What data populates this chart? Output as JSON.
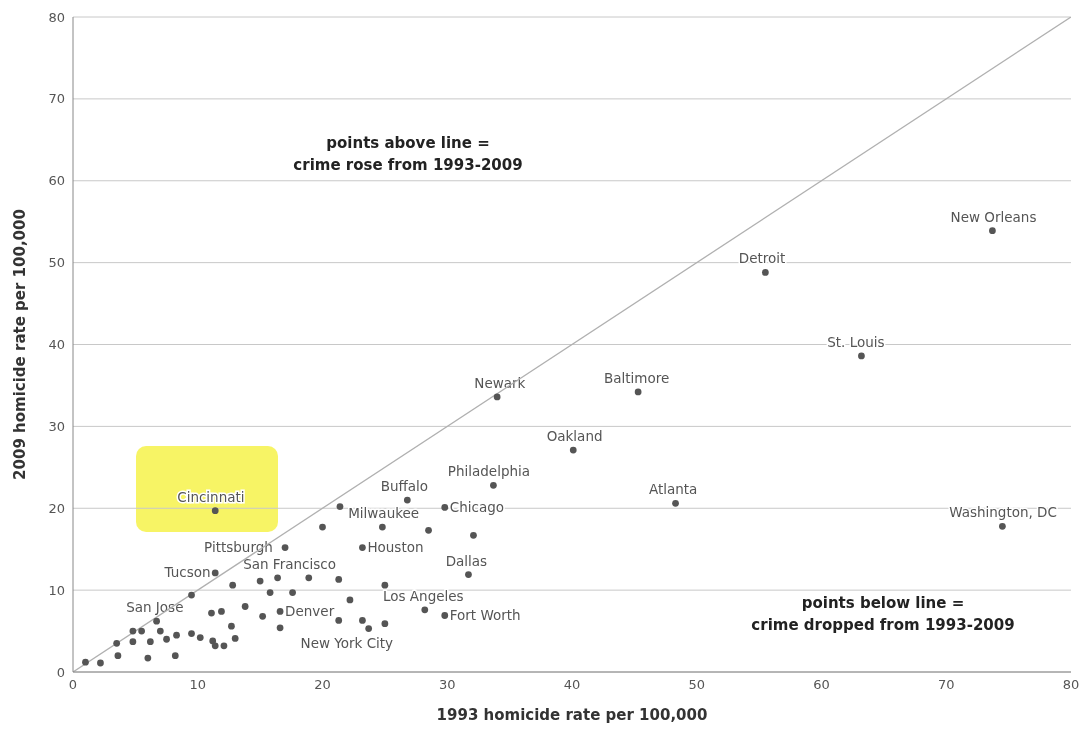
{
  "chart_data": {
    "type": "scatter",
    "xlabel": "1993 homicide rate per 100,000",
    "ylabel": "2009 homicide rate per 100,000",
    "xlim": [
      0,
      80
    ],
    "xticks": [
      0,
      10,
      20,
      30,
      40,
      50,
      60,
      70,
      80
    ],
    "ylim": [
      0,
      80
    ],
    "yticks": [
      0,
      10,
      20,
      30,
      40,
      50,
      60,
      70,
      80
    ],
    "grid": "y",
    "marker": "circle",
    "series": [
      {
        "type": "line",
        "marker": "none",
        "color": "#b0b0b0",
        "x": [
          0,
          80
        ],
        "values": [
          0,
          80
        ]
      },
      {
        "color": "#555555",
        "x": [
          73.7,
          55.5,
          63.2,
          34.0,
          45.3,
          40.1,
          48.3,
          74.5,
          33.7,
          11.4,
          21.4,
          26.8,
          29.8,
          20.0,
          24.8,
          28.5,
          32.1,
          17.0,
          23.2,
          31.7,
          11.4,
          12.8,
          15.0,
          16.4,
          18.9,
          21.3,
          9.5,
          17.6,
          15.8,
          13.8,
          16.6,
          15.2,
          11.1,
          11.9,
          12.7,
          16.6,
          13.0,
          11.2,
          11.4,
          12.1,
          6.7,
          4.8,
          5.5,
          7.0,
          8.3,
          9.5,
          10.2,
          7.5,
          6.2,
          4.8,
          3.5,
          3.6,
          6.0,
          8.2,
          1.0,
          2.2,
          21.3,
          23.2,
          23.7,
          25.0,
          22.2,
          25.0,
          28.2,
          29.8
        ],
        "values": [
          53.9,
          48.8,
          38.6,
          33.6,
          34.2,
          27.1,
          20.6,
          17.8,
          22.8,
          19.7,
          20.2,
          21.0,
          20.1,
          17.7,
          17.7,
          17.3,
          16.7,
          15.2,
          15.2,
          11.9,
          12.1,
          10.6,
          11.1,
          11.5,
          11.5,
          11.3,
          9.4,
          9.7,
          9.7,
          8.0,
          7.4,
          6.8,
          7.2,
          7.4,
          5.6,
          5.4,
          4.1,
          3.8,
          3.2,
          3.2,
          6.2,
          5.0,
          5.0,
          5.0,
          4.5,
          4.7,
          4.2,
          4.0,
          3.7,
          3.7,
          3.5,
          2.0,
          1.7,
          2.0,
          1.2,
          1.1,
          6.3,
          6.3,
          5.3,
          5.9,
          8.8,
          10.6,
          7.6,
          6.9
        ]
      }
    ],
    "annotations": [
      "points above line =\ncrime rose from 1993-2009",
      "points below line =\ncrime dropped from 1993-2009",
      {
        "text": "New Orleans",
        "x": 73.7,
        "y": 53.9
      },
      {
        "text": "Detroit",
        "x": 55.5,
        "y": 48.8
      },
      {
        "text": "St. Louis",
        "x": 63.2,
        "y": 38.6
      },
      {
        "text": "Newark",
        "x": 34.0,
        "y": 33.6
      },
      {
        "text": "Baltimore",
        "x": 45.3,
        "y": 34.2
      },
      {
        "text": "Oakland",
        "x": 40.1,
        "y": 27.1
      },
      {
        "text": "Atlanta",
        "x": 48.3,
        "y": 20.6
      },
      {
        "text": "Washington, DC",
        "x": 74.5,
        "y": 17.8
      },
      {
        "text": "Philadelphia",
        "x": 33.7,
        "y": 22.8
      },
      {
        "text": "Cincinnati",
        "x": 11.4,
        "y": 19.7
      },
      {
        "text": "Buffalo",
        "x": 26.8,
        "y": 21.0
      },
      {
        "text": "Chicago",
        "x": 29.8,
        "y": 20.1
      },
      {
        "text": "Milwaukee",
        "x": 24.8,
        "y": 17.7
      },
      {
        "text": "Pittsburgh",
        "x": 17.0,
        "y": 15.2
      },
      {
        "text": "Houston",
        "x": 23.2,
        "y": 15.2
      },
      {
        "text": "Dallas",
        "x": 31.7,
        "y": 11.9
      },
      {
        "text": "Tucson",
        "x": 11.4,
        "y": 12.1
      },
      {
        "text": "San Francisco",
        "x": 17.6,
        "y": 9.7
      },
      {
        "text": "Denver",
        "x": 16.6,
        "y": 7.4
      },
      {
        "text": "Los Angeles",
        "x": 28.2,
        "y": 7.6
      },
      {
        "text": "New York City",
        "x": 22.2,
        "y": 8.8
      },
      {
        "text": "Fort Worth",
        "x": 29.8,
        "y": 6.9
      },
      {
        "text": "San Jose",
        "x": 6.7,
        "y": 6.2
      }
    ]
  }
}
